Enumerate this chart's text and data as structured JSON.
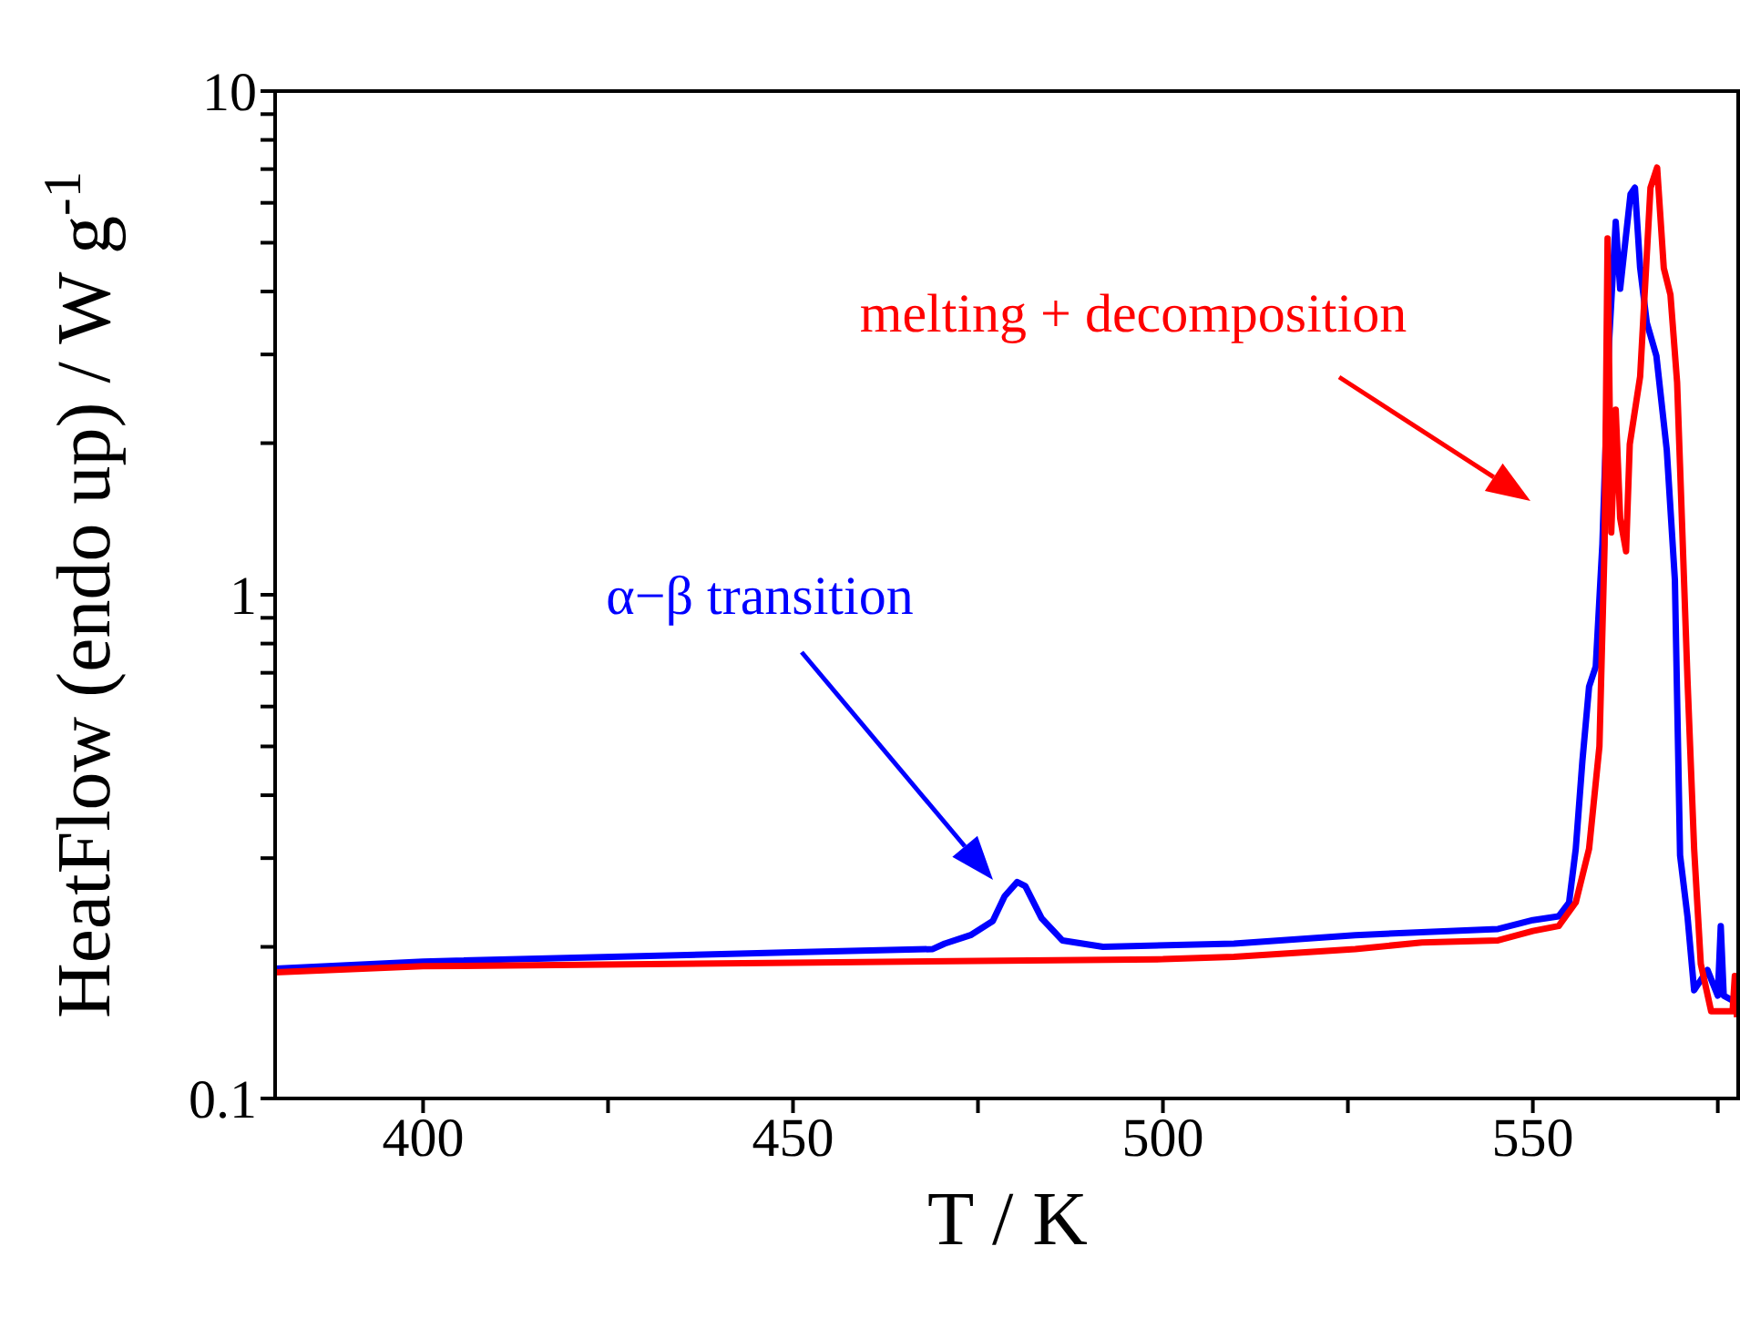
{
  "chart_data": {
    "type": "line",
    "xlabel": "T / K",
    "ylabel": "HeatFlow (endo up) / W g$^{-1}$",
    "log": "y",
    "xlim": [
      380,
      578
    ],
    "xticks": [
      400,
      {
        "value": 425,
        "label": null
      },
      450,
      {
        "value": 475,
        "label": null
      },
      500,
      {
        "value": 525,
        "label": null
      },
      550,
      {
        "value": 575,
        "label": null
      }
    ],
    "ylim": [
      0.1,
      10
    ],
    "yticks": [
      0.1,
      {
        "value": 0.2,
        "label": null
      },
      {
        "value": 0.3,
        "label": null
      },
      {
        "value": 0.4,
        "label": null
      },
      {
        "value": 0.5,
        "label": null
      },
      {
        "value": 0.6,
        "label": null
      },
      {
        "value": 0.7,
        "label": null
      },
      {
        "value": 0.8,
        "label": null
      },
      {
        "value": 0.9,
        "label": null
      },
      1,
      {
        "value": 2,
        "label": null
      },
      {
        "value": 3,
        "label": null
      },
      {
        "value": 4,
        "label": null
      },
      {
        "value": 5,
        "label": null
      },
      {
        "value": 6,
        "label": null
      },
      {
        "value": 7,
        "label": null
      },
      {
        "value": 8,
        "label": null
      },
      {
        "value": 9,
        "label": null
      },
      10
    ],
    "marker": "none",
    "line_style": "solid",
    "series": [
      {
        "color": "#0000ff",
        "x": [
          380,
          400,
          450,
          468.9,
          470.5,
          474,
          477,
          478.6,
          480.3,
          481.4,
          483.6,
          486.4,
          491.9,
          509.6,
          526,
          545.3,
          550,
          553.5,
          554.9,
          555.8,
          556.7,
          557.6,
          558.5,
          559.4,
          560.3,
          561.2,
          561.8,
          562.6,
          563.2,
          563.8,
          564.5,
          565.4,
          566.7,
          568.1,
          569.2,
          569.9,
          570.9,
          571.8,
          573.6,
          575,
          575.4,
          575.8,
          577.5
        ],
        "values": [
          0.181,
          0.187,
          0.195,
          0.198,
          0.203,
          0.211,
          0.225,
          0.252,
          0.269,
          0.264,
          0.228,
          0.206,
          0.2,
          0.203,
          0.211,
          0.217,
          0.226,
          0.23,
          0.245,
          0.313,
          0.468,
          0.657,
          0.72,
          1.26,
          3.17,
          5.5,
          4.05,
          5.18,
          6.24,
          6.43,
          4.46,
          3.47,
          2.98,
          1.94,
          1.07,
          0.304,
          0.23,
          0.164,
          0.18,
          0.16,
          0.22,
          0.16,
          0.155
        ]
      },
      {
        "color": "#ff0000",
        "x": [
          380,
          400,
          450,
          500,
          509.6,
          526,
          535,
          545.3,
          550,
          553.5,
          555.8,
          557.6,
          559,
          559.7,
          560.1,
          560.6,
          561.2,
          561.8,
          562.6,
          563.1,
          564.5,
          565.9,
          566.8,
          567.7,
          568.6,
          569.5,
          570.9,
          571.8,
          572.7,
          574.1,
          577,
          577.3,
          577.6
        ],
        "values": [
          0.178,
          0.183,
          0.186,
          0.189,
          0.191,
          0.198,
          0.204,
          0.206,
          0.215,
          0.22,
          0.245,
          0.313,
          0.5,
          1.26,
          5.1,
          1.33,
          2.33,
          1.42,
          1.22,
          1.99,
          2.71,
          6.43,
          7.05,
          4.45,
          3.94,
          2.64,
          0.68,
          0.313,
          0.185,
          0.149,
          0.149,
          0.175,
          0.145
        ]
      }
    ],
    "annotations": [
      "α−β transition",
      "melting + decomposition"
    ]
  }
}
